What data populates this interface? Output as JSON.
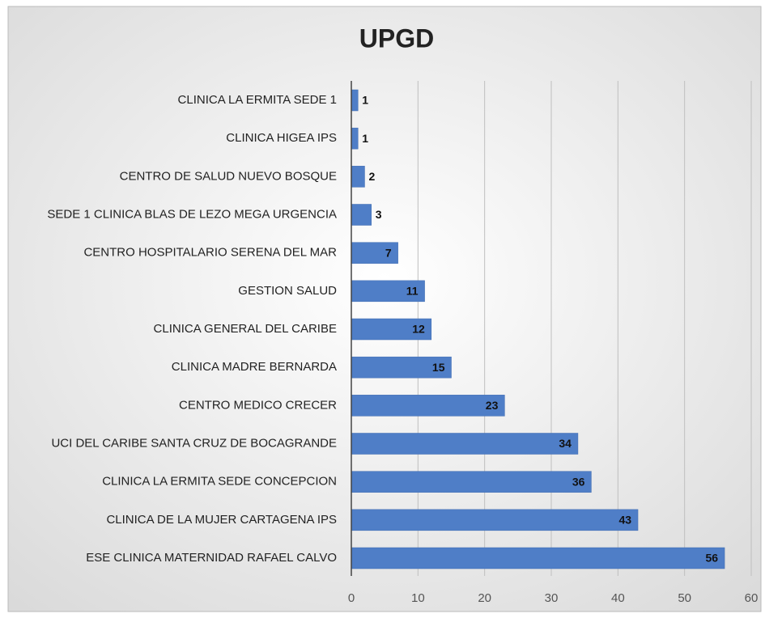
{
  "chart_data": {
    "type": "bar",
    "orientation": "horizontal",
    "title": "UPGD",
    "categories": [
      "CLINICA LA ERMITA SEDE 1",
      "CLINICA HIGEA IPS",
      "CENTRO DE SALUD NUEVO BOSQUE",
      "SEDE 1 CLINICA BLAS DE LEZO MEGA URGENCIA",
      "CENTRO HOSPITALARIO SERENA DEL MAR",
      "GESTION SALUD",
      "CLINICA GENERAL DEL CARIBE",
      "CLINICA MADRE BERNARDA",
      "CENTRO MEDICO CRECER",
      "UCI DEL CARIBE SANTA CRUZ DE BOCAGRANDE",
      "CLINICA LA ERMITA SEDE CONCEPCION",
      "CLINICA DE LA MUJER CARTAGENA IPS",
      "ESE CLINICA MATERNIDAD RAFAEL CALVO"
    ],
    "values": [
      1,
      1,
      2,
      3,
      7,
      11,
      12,
      15,
      23,
      34,
      36,
      43,
      56
    ],
    "color": "#4f7ec7",
    "xlim": [
      0,
      60
    ],
    "xticks": [
      0,
      10,
      20,
      30,
      40,
      50,
      60
    ],
    "grid": true
  }
}
